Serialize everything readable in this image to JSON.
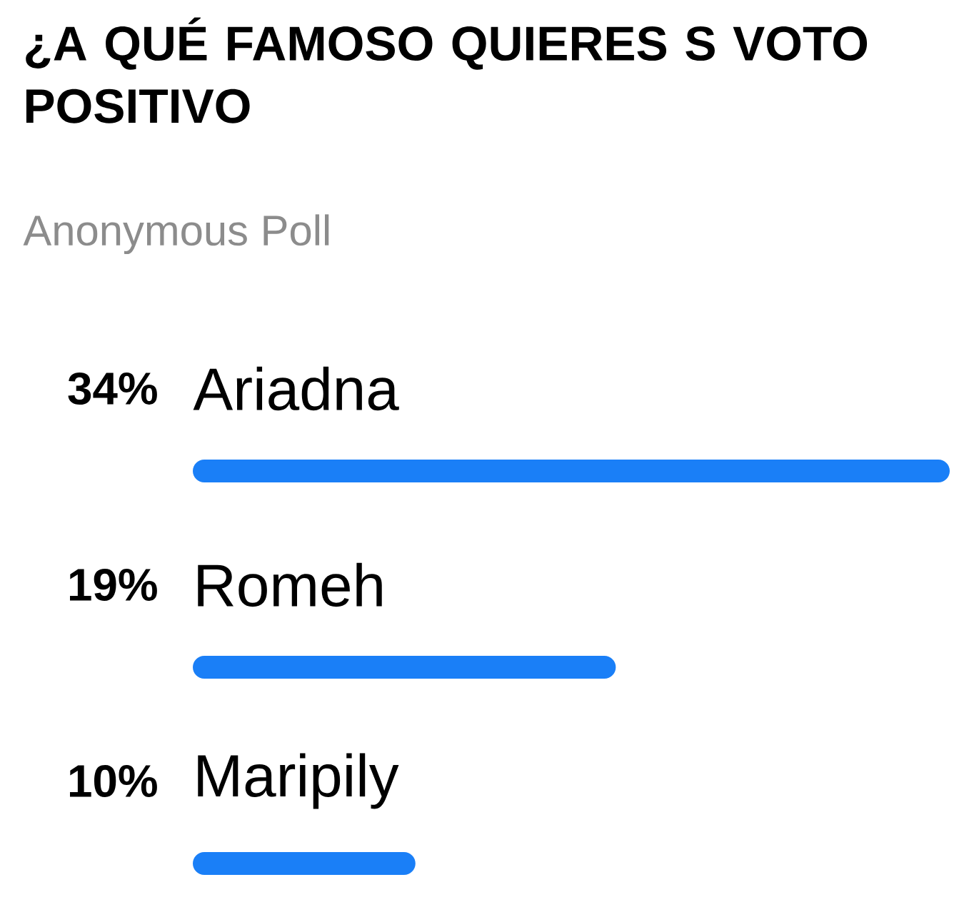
{
  "chart_data": {
    "type": "bar",
    "orientation": "horizontal",
    "title": "¿A QUÉ FAMOSO QUIERES S VOTO POSITIVO",
    "subtitle": "Anonymous Poll",
    "categories": [
      "Ariadna",
      "Romeh",
      "Maripily"
    ],
    "values": [
      34,
      19,
      10
    ],
    "value_labels": [
      "34%",
      "19%",
      "10%"
    ],
    "color": "#1a7ff7",
    "xlim": [
      0,
      34
    ]
  }
}
